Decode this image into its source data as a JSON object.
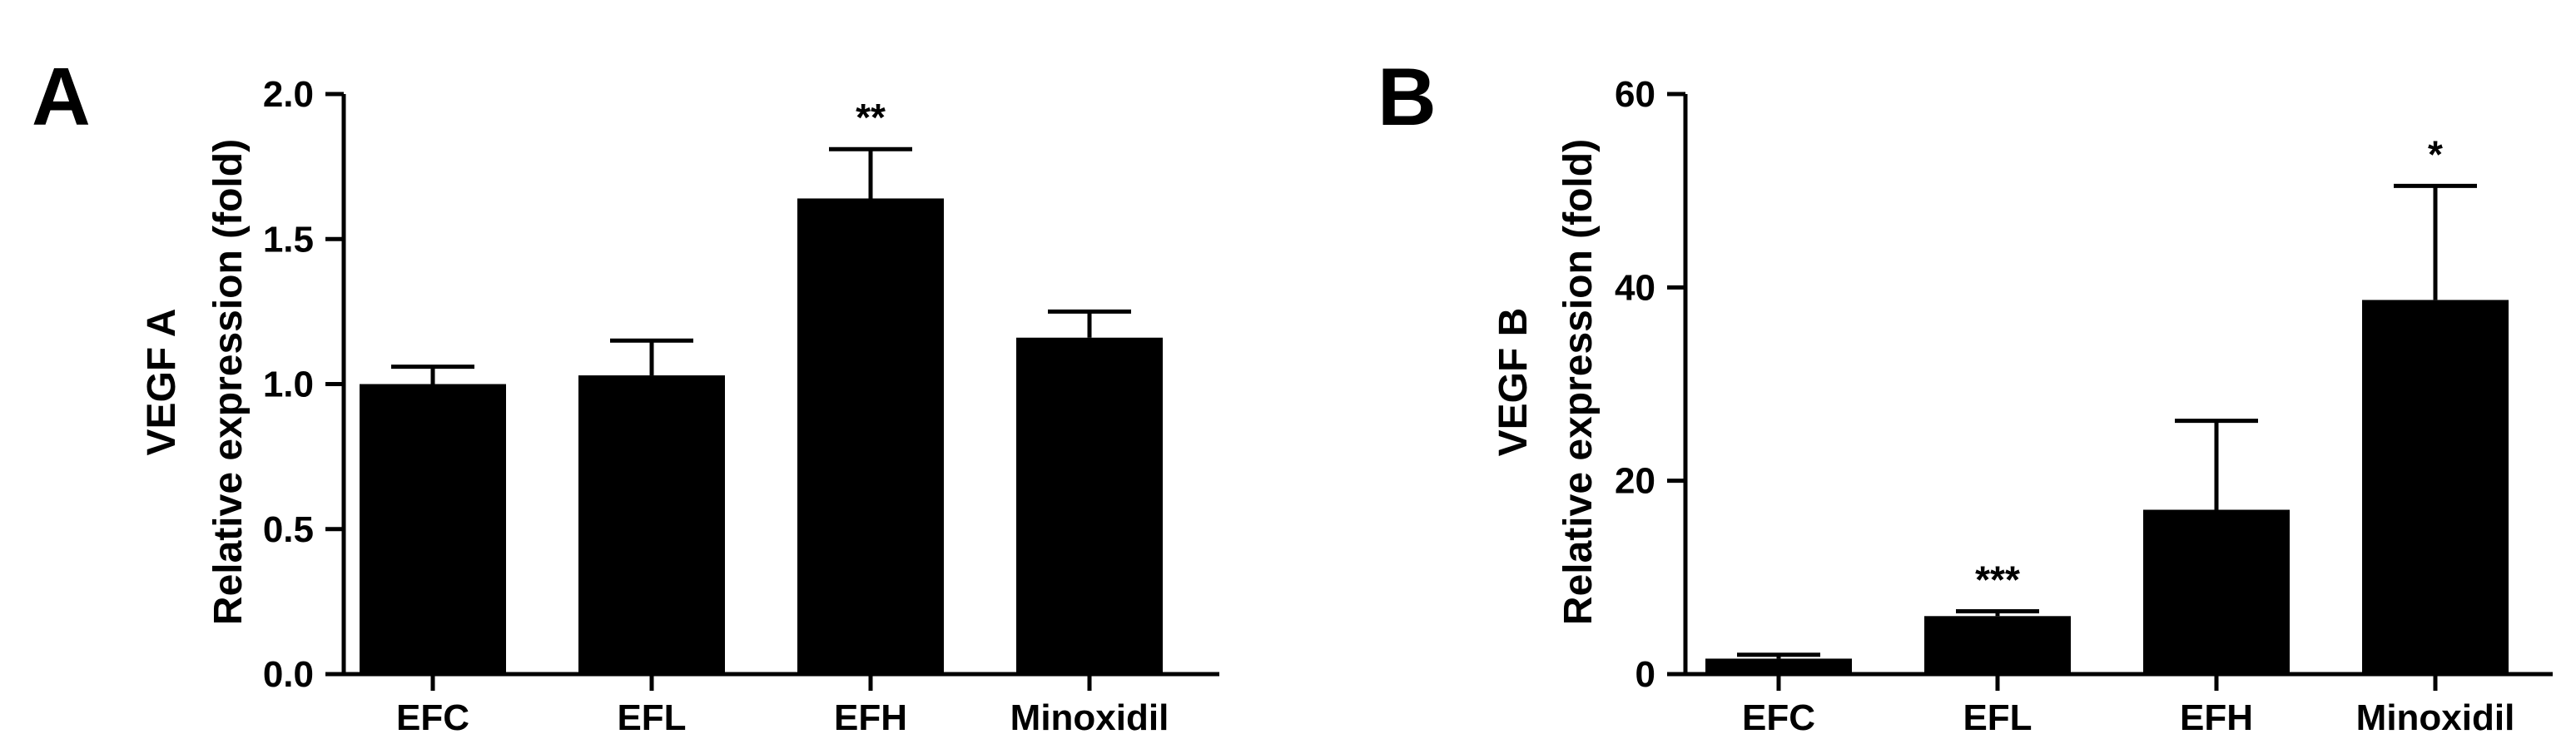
{
  "chart_data": [
    {
      "panel_label": "A",
      "type": "bar",
      "categories": [
        "EFC",
        "EFL",
        "EFH",
        "Minoxidil"
      ],
      "values": [
        1.0,
        1.03,
        1.64,
        1.16
      ],
      "errors": [
        0.06,
        0.12,
        0.17,
        0.09
      ],
      "significance": [
        "",
        "",
        "**",
        ""
      ],
      "ylabel_top": "VEGF A",
      "ylabel": "Relative expression (fold)",
      "ylim": [
        0,
        2.0
      ],
      "yticks": [
        0.0,
        0.5,
        1.0,
        1.5,
        2.0
      ],
      "ytick_labels": [
        "0.0",
        "0.5",
        "1.0",
        "1.5",
        "2.0"
      ],
      "grid": false,
      "bar_color": "#000000"
    },
    {
      "panel_label": "B",
      "type": "bar",
      "categories": [
        "EFC",
        "EFL",
        "EFH",
        "Minoxidil"
      ],
      "values": [
        1.6,
        6.0,
        17.0,
        38.7
      ],
      "errors": [
        0.4,
        0.5,
        9.2,
        11.8
      ],
      "significance": [
        "",
        "***",
        "",
        "*"
      ],
      "ylabel_top": "VEGF B",
      "ylabel": "Relative expression (fold)",
      "ylim": [
        0,
        60
      ],
      "yticks": [
        0,
        20,
        40,
        60
      ],
      "ytick_labels": [
        "0",
        "20",
        "40",
        "60"
      ],
      "grid": false,
      "bar_color": "#000000"
    }
  ]
}
